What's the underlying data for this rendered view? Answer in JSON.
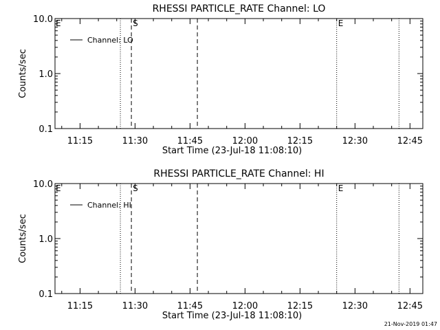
{
  "chart_data": [
    {
      "type": "line",
      "title": "RHESSI PARTICLE_RATE Channel: LO",
      "xlabel": "Start Time (23-Jul-18 11:08:10)",
      "ylabel": "Counts/sec",
      "y_scale": "log",
      "ylim": [
        0.1,
        10.0
      ],
      "y_ticks": [
        {
          "value": 0.1,
          "label": "0.1"
        },
        {
          "value": 1.0,
          "label": "1.0"
        },
        {
          "value": 10.0,
          "label": "10.0"
        }
      ],
      "xlim": [
        "11:08:10",
        "12:48:30"
      ],
      "x_ticks": [
        "11:15",
        "11:30",
        "11:45",
        "12:00",
        "12:15",
        "12:30",
        "12:45"
      ],
      "legend": {
        "position": "top-left",
        "entries": [
          {
            "name": "Channel: LO",
            "style": "solid"
          }
        ]
      },
      "series": [
        {
          "name": "Channel: LO",
          "values": []
        }
      ],
      "markers": [
        {
          "time": "11:26",
          "style": "dotted",
          "label": ""
        },
        {
          "time": "11:29",
          "style": "dashed",
          "label": "S"
        },
        {
          "time": "11:47",
          "style": "dashed",
          "label": ""
        },
        {
          "time": "12:25",
          "style": "dotted",
          "label": "E"
        },
        {
          "time": "12:42",
          "style": "dotted",
          "label": ""
        }
      ],
      "edge_label": "E"
    },
    {
      "type": "line",
      "title": "RHESSI PARTICLE_RATE Channel: HI",
      "xlabel": "Start Time (23-Jul-18 11:08:10)",
      "ylabel": "Counts/sec",
      "y_scale": "log",
      "ylim": [
        0.1,
        10.0
      ],
      "y_ticks": [
        {
          "value": 0.1,
          "label": "0.1"
        },
        {
          "value": 1.0,
          "label": "1.0"
        },
        {
          "value": 10.0,
          "label": "10.0"
        }
      ],
      "xlim": [
        "11:08:10",
        "12:48:30"
      ],
      "x_ticks": [
        "11:15",
        "11:30",
        "11:45",
        "12:00",
        "12:15",
        "12:30",
        "12:45"
      ],
      "legend": {
        "position": "top-left",
        "entries": [
          {
            "name": "Channel: HI",
            "style": "solid"
          }
        ]
      },
      "series": [
        {
          "name": "Channel: HI",
          "values": []
        }
      ],
      "markers": [
        {
          "time": "11:26",
          "style": "dotted",
          "label": ""
        },
        {
          "time": "11:29",
          "style": "dashed",
          "label": "S"
        },
        {
          "time": "11:47",
          "style": "dashed",
          "label": ""
        },
        {
          "time": "12:25",
          "style": "dotted",
          "label": "E"
        },
        {
          "time": "12:42",
          "style": "dotted",
          "label": ""
        }
      ],
      "edge_label": "E"
    }
  ],
  "footer": {
    "timestamp": "21-Nov-2019 01:47"
  }
}
